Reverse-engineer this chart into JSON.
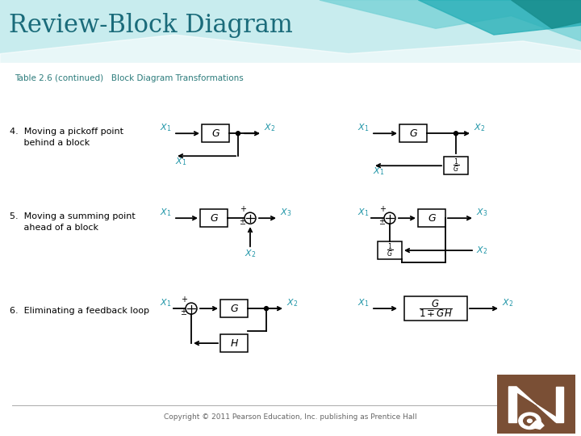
{
  "title": "Review-Block Diagram",
  "title_color": "#1a6b7a",
  "table_label": "Table 2.6 (continued)   Block Diagram Transformations",
  "table_label_color": "#2a7a7a",
  "copyright": "Copyright © 2011 Pearson Education, Inc. publishing as Prentice Hall",
  "background_color": "#eef4f4",
  "row_labels": [
    "4.  Moving a pickoff point\n     behind a block",
    "5.  Moving a summing point\n     ahead of a block",
    "6.  Eliminating a feedback loop"
  ],
  "label_color": "#2196a8"
}
